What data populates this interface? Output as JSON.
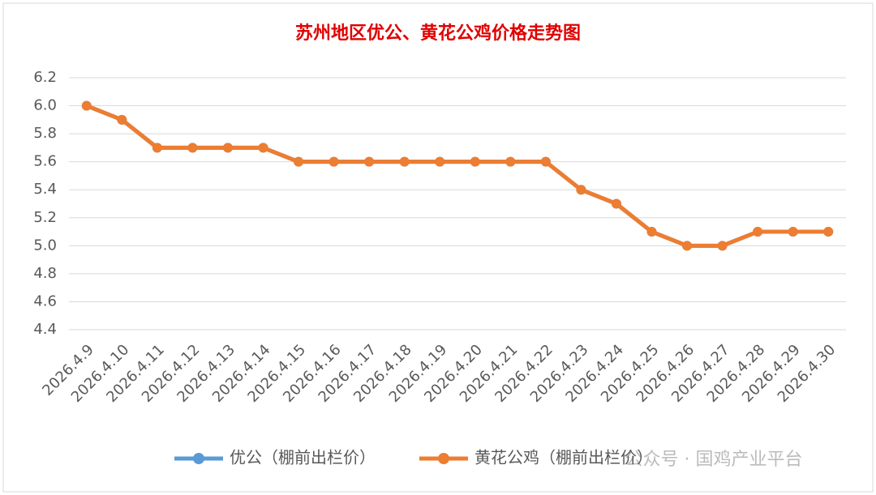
{
  "chart_data": {
    "type": "line",
    "title": "苏州地区优公、黄花公鸡价格走势图",
    "categories": [
      "2026.4.9",
      "2026.4.10",
      "2026.4.11",
      "2026.4.12",
      "2026.4.13",
      "2026.4.14",
      "2026.4.15",
      "2026.4.16",
      "2026.4.17",
      "2026.4.18",
      "2026.4.19",
      "2026.4.20",
      "2026.4.21",
      "2026.4.22",
      "2026.4.23",
      "2026.4.24",
      "2026.4.25",
      "2026.4.26",
      "2026.4.27",
      "2026.4.28",
      "2026.4.29",
      "2026.4.30"
    ],
    "series": [
      {
        "name": "优公（棚前出栏价）",
        "color": "#5b9bd5",
        "values": [
          6.0,
          5.9,
          5.7,
          5.7,
          5.7,
          5.7,
          5.6,
          5.6,
          5.6,
          5.6,
          5.6,
          5.6,
          5.6,
          5.6,
          5.4,
          5.3,
          5.1,
          5.0,
          5.0,
          5.1,
          5.1,
          5.1
        ]
      },
      {
        "name": "黄花公鸡（棚前出栏价）",
        "color": "#ed7d31",
        "values": [
          6.0,
          5.9,
          5.7,
          5.7,
          5.7,
          5.7,
          5.6,
          5.6,
          5.6,
          5.6,
          5.6,
          5.6,
          5.6,
          5.6,
          5.4,
          5.3,
          5.1,
          5.0,
          5.0,
          5.1,
          5.1,
          5.1
        ]
      }
    ],
    "ylim": [
      4.4,
      6.2
    ],
    "yticks": [
      4.4,
      4.6,
      4.8,
      {
        "value": 5.0,
        "label": "5.0"
      },
      5.2,
      5.4,
      5.6,
      5.8,
      {
        "value": 6.0,
        "label": "6.0"
      },
      6.2
    ],
    "grid": true,
    "legend": "bottom",
    "watermark": "公众号 · 国鸡产业平台"
  }
}
